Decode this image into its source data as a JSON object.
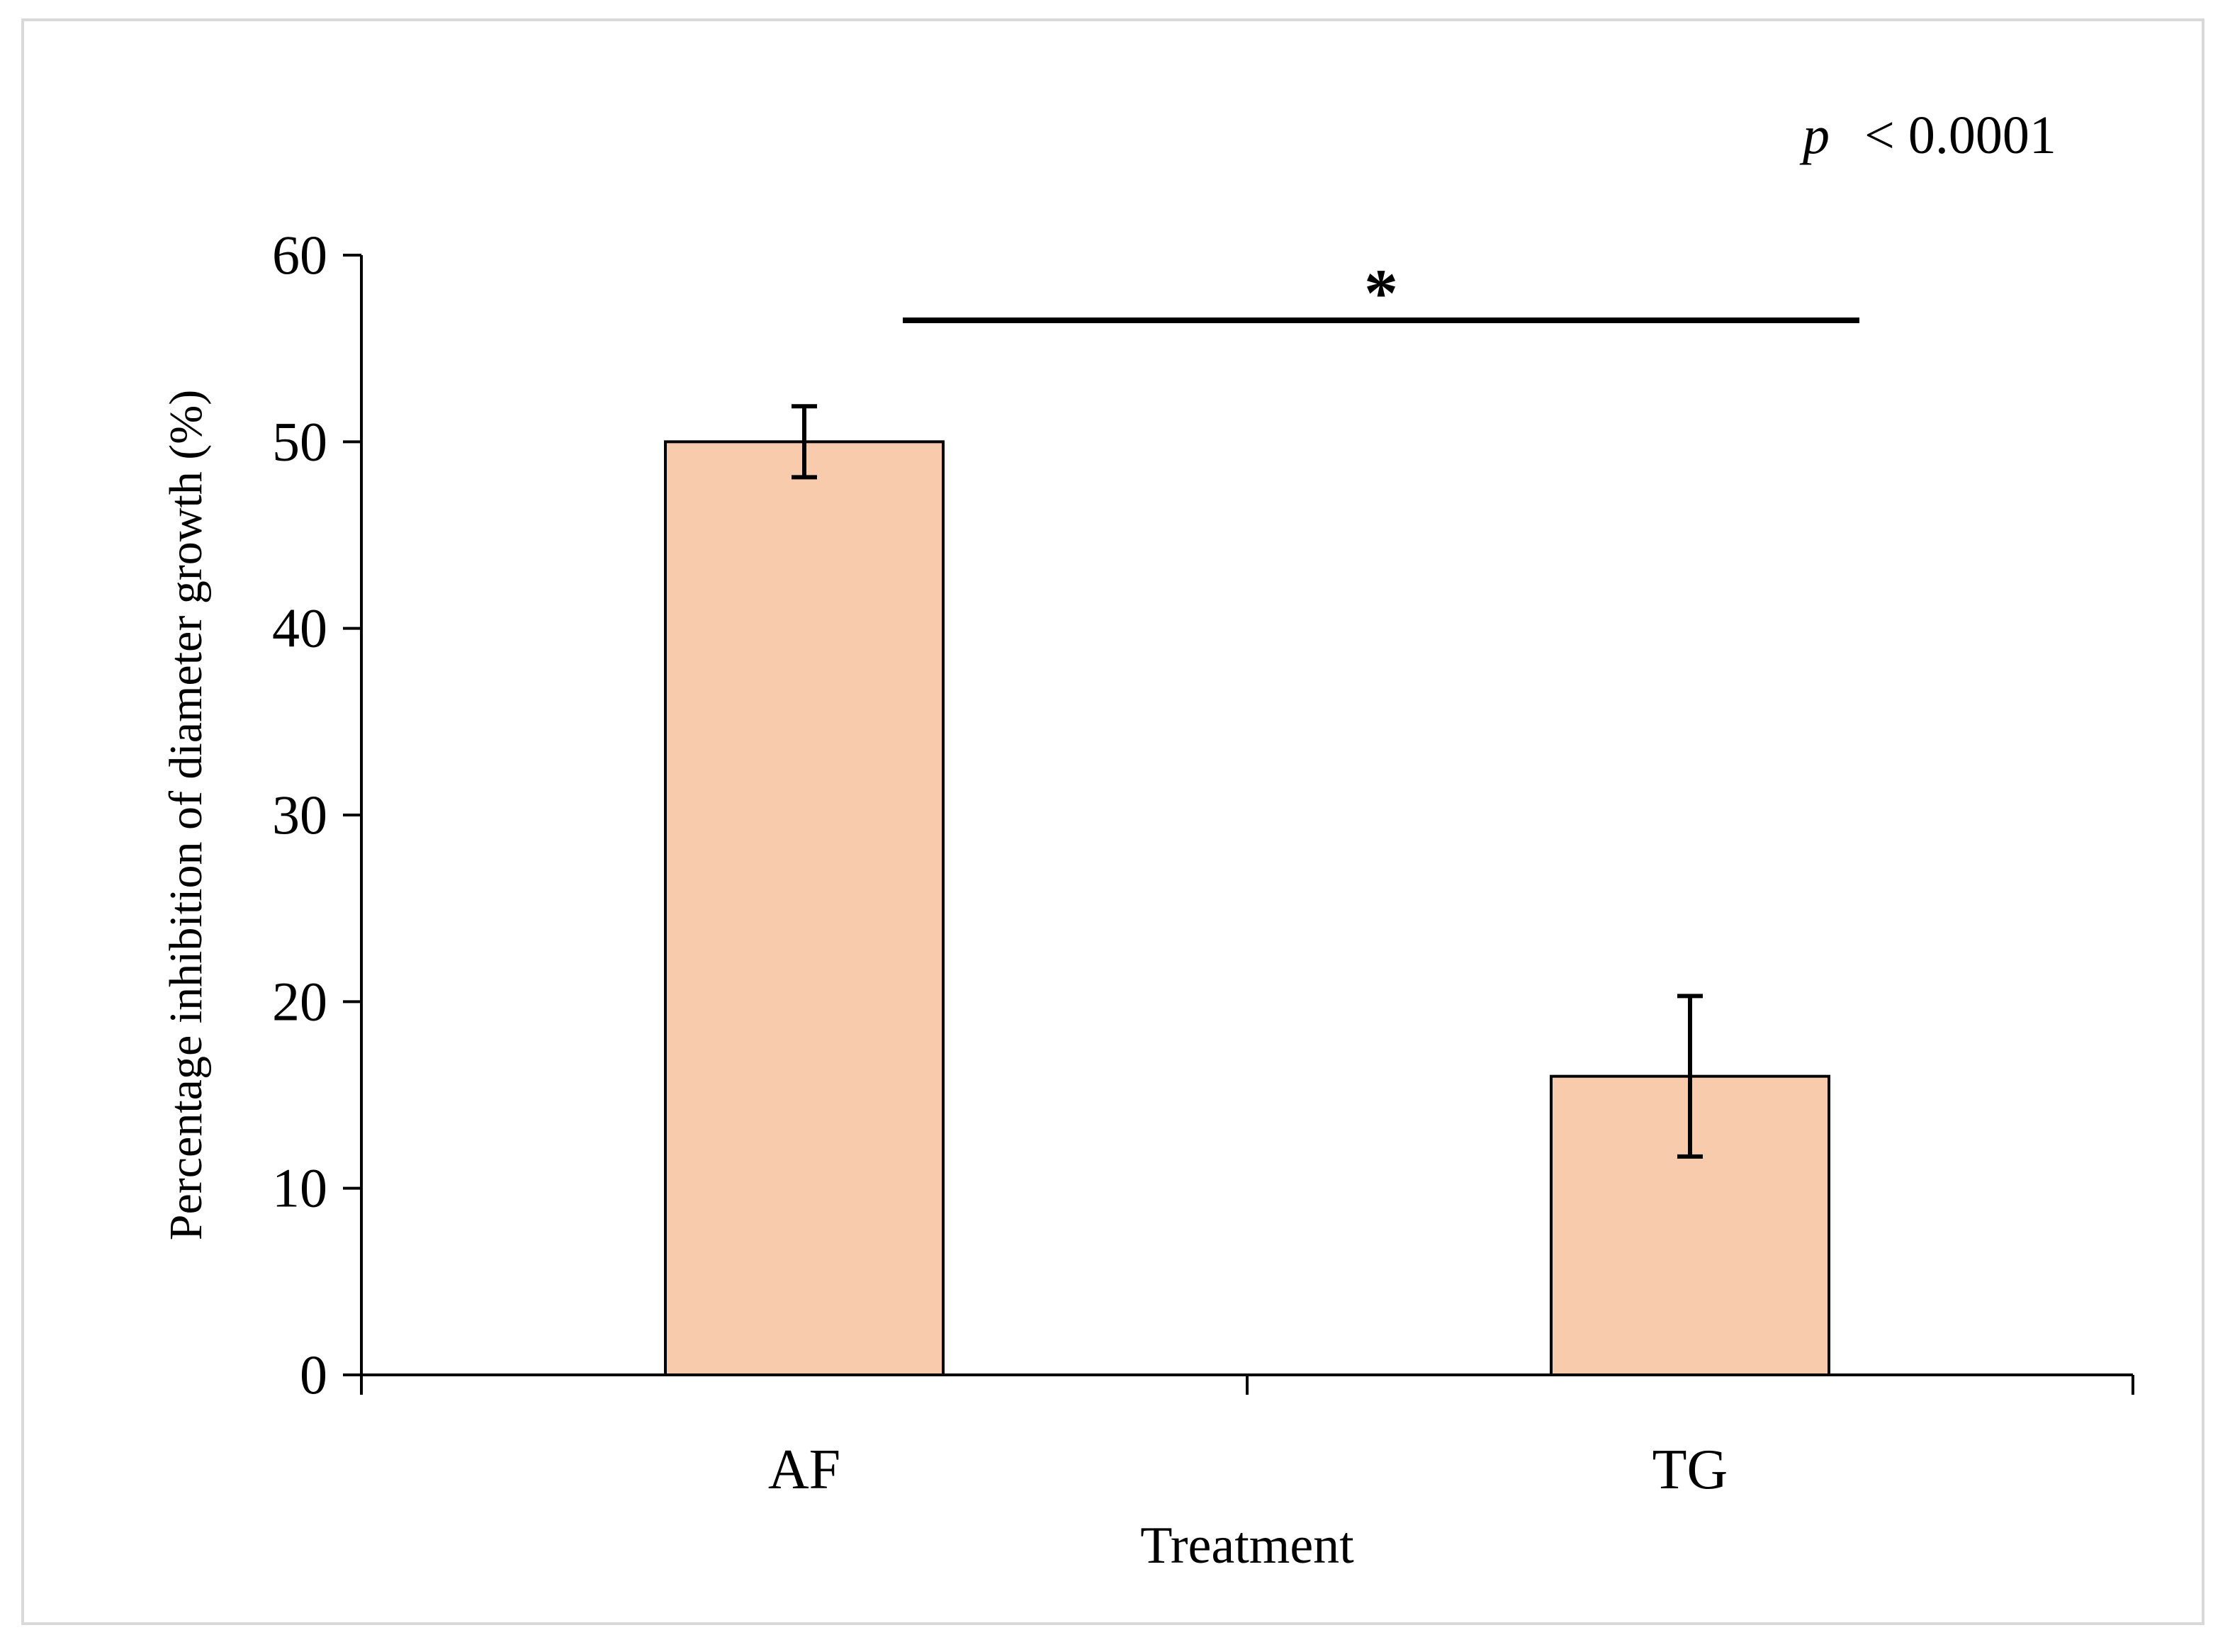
{
  "chart_data": {
    "type": "bar",
    "title": "",
    "categories": [
      "AF",
      "TG"
    ],
    "values": [
      50,
      16
    ],
    "errors": [
      1.9,
      4.3
    ],
    "xlabel": "Treatment",
    "ylabel": "Percentage inhibition of diameter growth (%)",
    "ylim": [
      0,
      60
    ],
    "yticks": [
      0,
      10,
      20,
      30,
      40,
      50,
      60
    ],
    "grid": false,
    "legend": "none",
    "significance": {
      "marker": "*",
      "between": [
        "AF",
        "TG"
      ],
      "p_symbol": "p",
      "p_text": "< 0.0001"
    },
    "colors": {
      "bar_fill": "#f8cbad",
      "bar_stroke": "#000000",
      "axis": "#000000"
    }
  }
}
